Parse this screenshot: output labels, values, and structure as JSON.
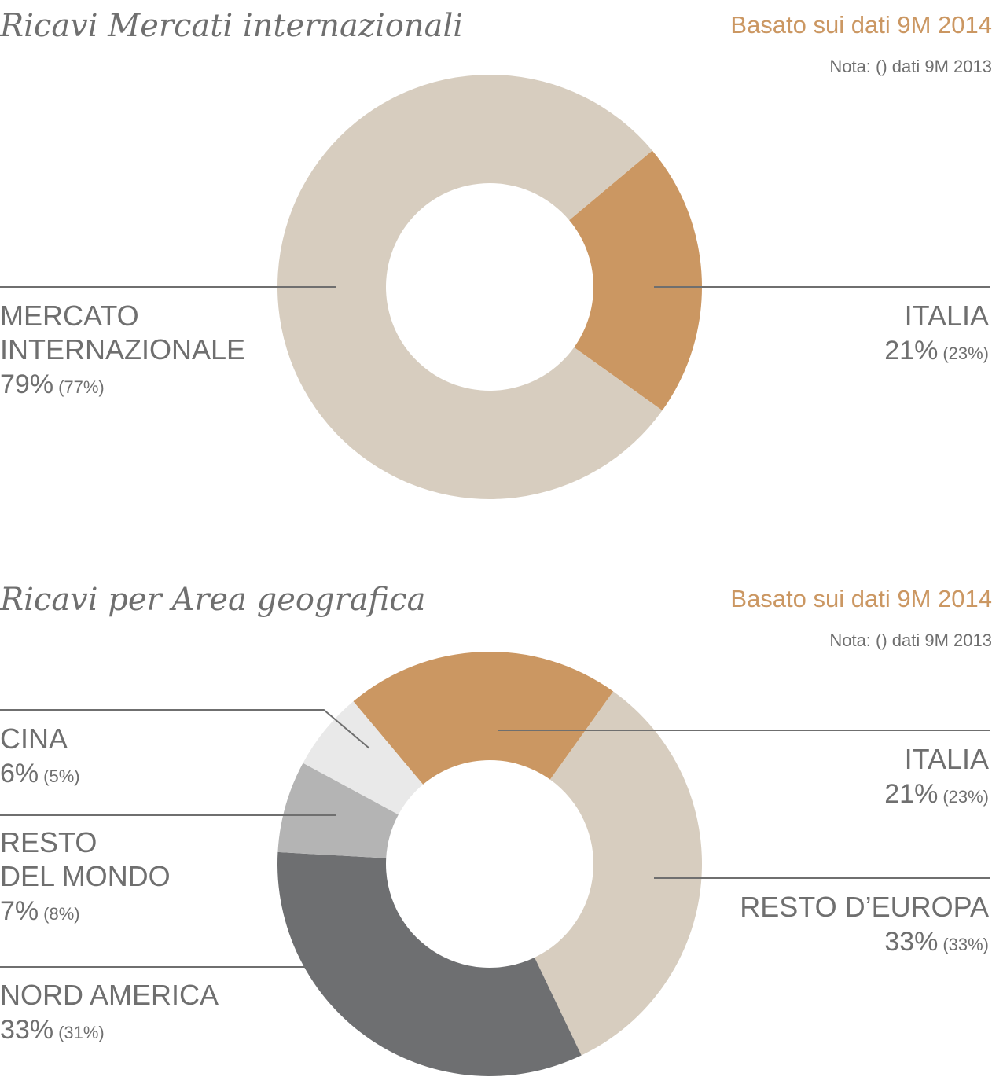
{
  "colors": {
    "accent": "#cb9762",
    "beige": "#d7cdbf",
    "dark_gray": "#6e6f71",
    "mid_gray": "#b4b4b4",
    "light_gray": "#e9e9e9",
    "text": "#6f6f6f",
    "line": "#6f6f6f"
  },
  "chart_data": [
    {
      "type": "pie",
      "title": "Ricavi Mercati internazionali",
      "basis": "Basato sui dati 9M 2014",
      "note": "Nota: () dati 9M 2013",
      "slices": [
        {
          "name": "ITALIA",
          "name_lines": [
            "ITALIA"
          ],
          "value": 21,
          "value_label": "21%",
          "previous": 23,
          "previous_label": "(23%)",
          "color": "#cb9762"
        },
        {
          "name": "MERCATO INTERNAZIONALE",
          "name_lines": [
            "MERCATO",
            "INTERNAZIONALE"
          ],
          "value": 79,
          "value_label": "79%",
          "previous": 77,
          "previous_label": "(77%)",
          "color": "#d7cdbf"
        }
      ]
    },
    {
      "type": "pie",
      "title": "Ricavi per Area geografica",
      "basis": "Basato sui dati 9M 2014",
      "note": "Nota: () dati 9M 2013",
      "slices": [
        {
          "name": "ITALIA",
          "name_lines": [
            "ITALIA"
          ],
          "value": 21,
          "value_label": "21%",
          "previous": 23,
          "previous_label": "(23%)",
          "color": "#cb9762"
        },
        {
          "name": "RESTO D’EUROPA",
          "name_lines": [
            "RESTO D’EUROPA"
          ],
          "value": 33,
          "value_label": "33%",
          "previous": 33,
          "previous_label": "(33%)",
          "color": "#d7cdbf"
        },
        {
          "name": "NORD AMERICA",
          "name_lines": [
            "NORD AMERICA"
          ],
          "value": 33,
          "value_label": "33%",
          "previous": 31,
          "previous_label": "(31%)",
          "color": "#6e6f71"
        },
        {
          "name": "RESTO DEL MONDO",
          "name_lines": [
            "RESTO",
            "DEL MONDO"
          ],
          "value": 7,
          "value_label": "7%",
          "previous": 8,
          "previous_label": "(8%)",
          "color": "#b4b4b4"
        },
        {
          "name": "CINA",
          "name_lines": [
            "CINA"
          ],
          "value": 6,
          "value_label": "6%",
          "previous": 5,
          "previous_label": "(5%)",
          "color": "#e9e9e9"
        }
      ]
    }
  ]
}
